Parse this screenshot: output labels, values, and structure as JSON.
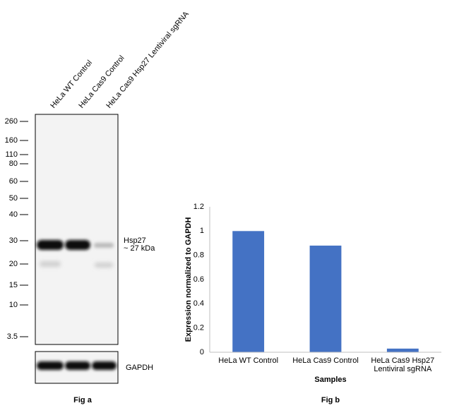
{
  "blot": {
    "lanes": [
      "HeLa WT Control",
      "HeLa Cas9 Control",
      "HeLa Cas9 Hsp27 Lentiviral sgRNA"
    ],
    "markers": [
      260,
      160,
      110,
      80,
      60,
      50,
      40,
      30,
      20,
      15,
      10,
      3.5
    ],
    "band_label": "Hsp27",
    "band_size": "~ 27 kDa",
    "loading_control": "GAPDH",
    "caption": "Fig a"
  },
  "chart_data": {
    "type": "bar",
    "categories": [
      "HeLa WT Control",
      "HeLa Cas9 Control",
      "HeLa Cas9 Hsp27 Lentiviral sgRNA"
    ],
    "values": [
      1,
      0.88,
      0.03
    ],
    "color": "#4472c4",
    "ylim": [
      0,
      1.2
    ],
    "yticks": [
      0,
      0.2,
      0.4,
      0.6,
      0.8,
      1,
      1.2
    ],
    "grid": false,
    "y_label": "Expression normalized to GAPDH",
    "x_label": "Samples",
    "caption": "Fig b"
  }
}
